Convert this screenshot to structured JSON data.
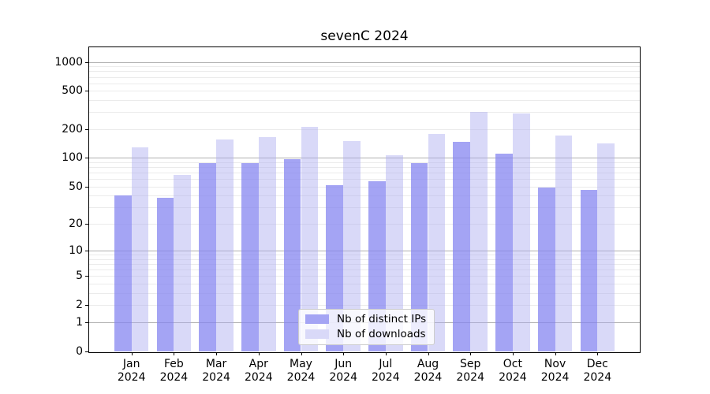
{
  "title": "sevenC 2024",
  "chart_data": {
    "type": "bar",
    "title": "sevenC 2024",
    "categories": [
      "Jan 2024",
      "Feb 2024",
      "Mar 2024",
      "Apr 2024",
      "May 2024",
      "Jun 2024",
      "Jul 2024",
      "Aug 2024",
      "Sep 2024",
      "Oct 2024",
      "Nov 2024",
      "Dec 2024"
    ],
    "series": [
      {
        "name": "Nb of distinct IPs",
        "color": "#a4a4f4",
        "color_rgba": "rgba(134,134,240,0.75)",
        "values": [
          40,
          38,
          88,
          88,
          97,
          52,
          57,
          89,
          147,
          110,
          49,
          46
        ]
      },
      {
        "name": "Nb of downloads",
        "color": "#d9d9f8",
        "color_rgba": "rgba(171,171,239,0.45)",
        "values": [
          130,
          66,
          157,
          165,
          212,
          150,
          106,
          178,
          302,
          289,
          170,
          143
        ]
      }
    ],
    "yscale": "log1p",
    "y_ticks": [
      0,
      1,
      2,
      5,
      10,
      20,
      50,
      100,
      200,
      500,
      1000
    ],
    "y_minor_gridlines": [
      2,
      3,
      4,
      5,
      6,
      7,
      8,
      9,
      20,
      30,
      40,
      50,
      60,
      70,
      80,
      90,
      200,
      300,
      400,
      500,
      600,
      700,
      800,
      900
    ],
    "y_major_gridlines": [
      1,
      10,
      100,
      1000
    ],
    "ylim": [
      0,
      1420
    ],
    "grid": true,
    "legend_position": "lower center",
    "colors": {
      "grid_minor": "#ebebeb",
      "grid_major": "#b0b0b0",
      "axis": "#000000",
      "background": "#ffffff"
    }
  }
}
